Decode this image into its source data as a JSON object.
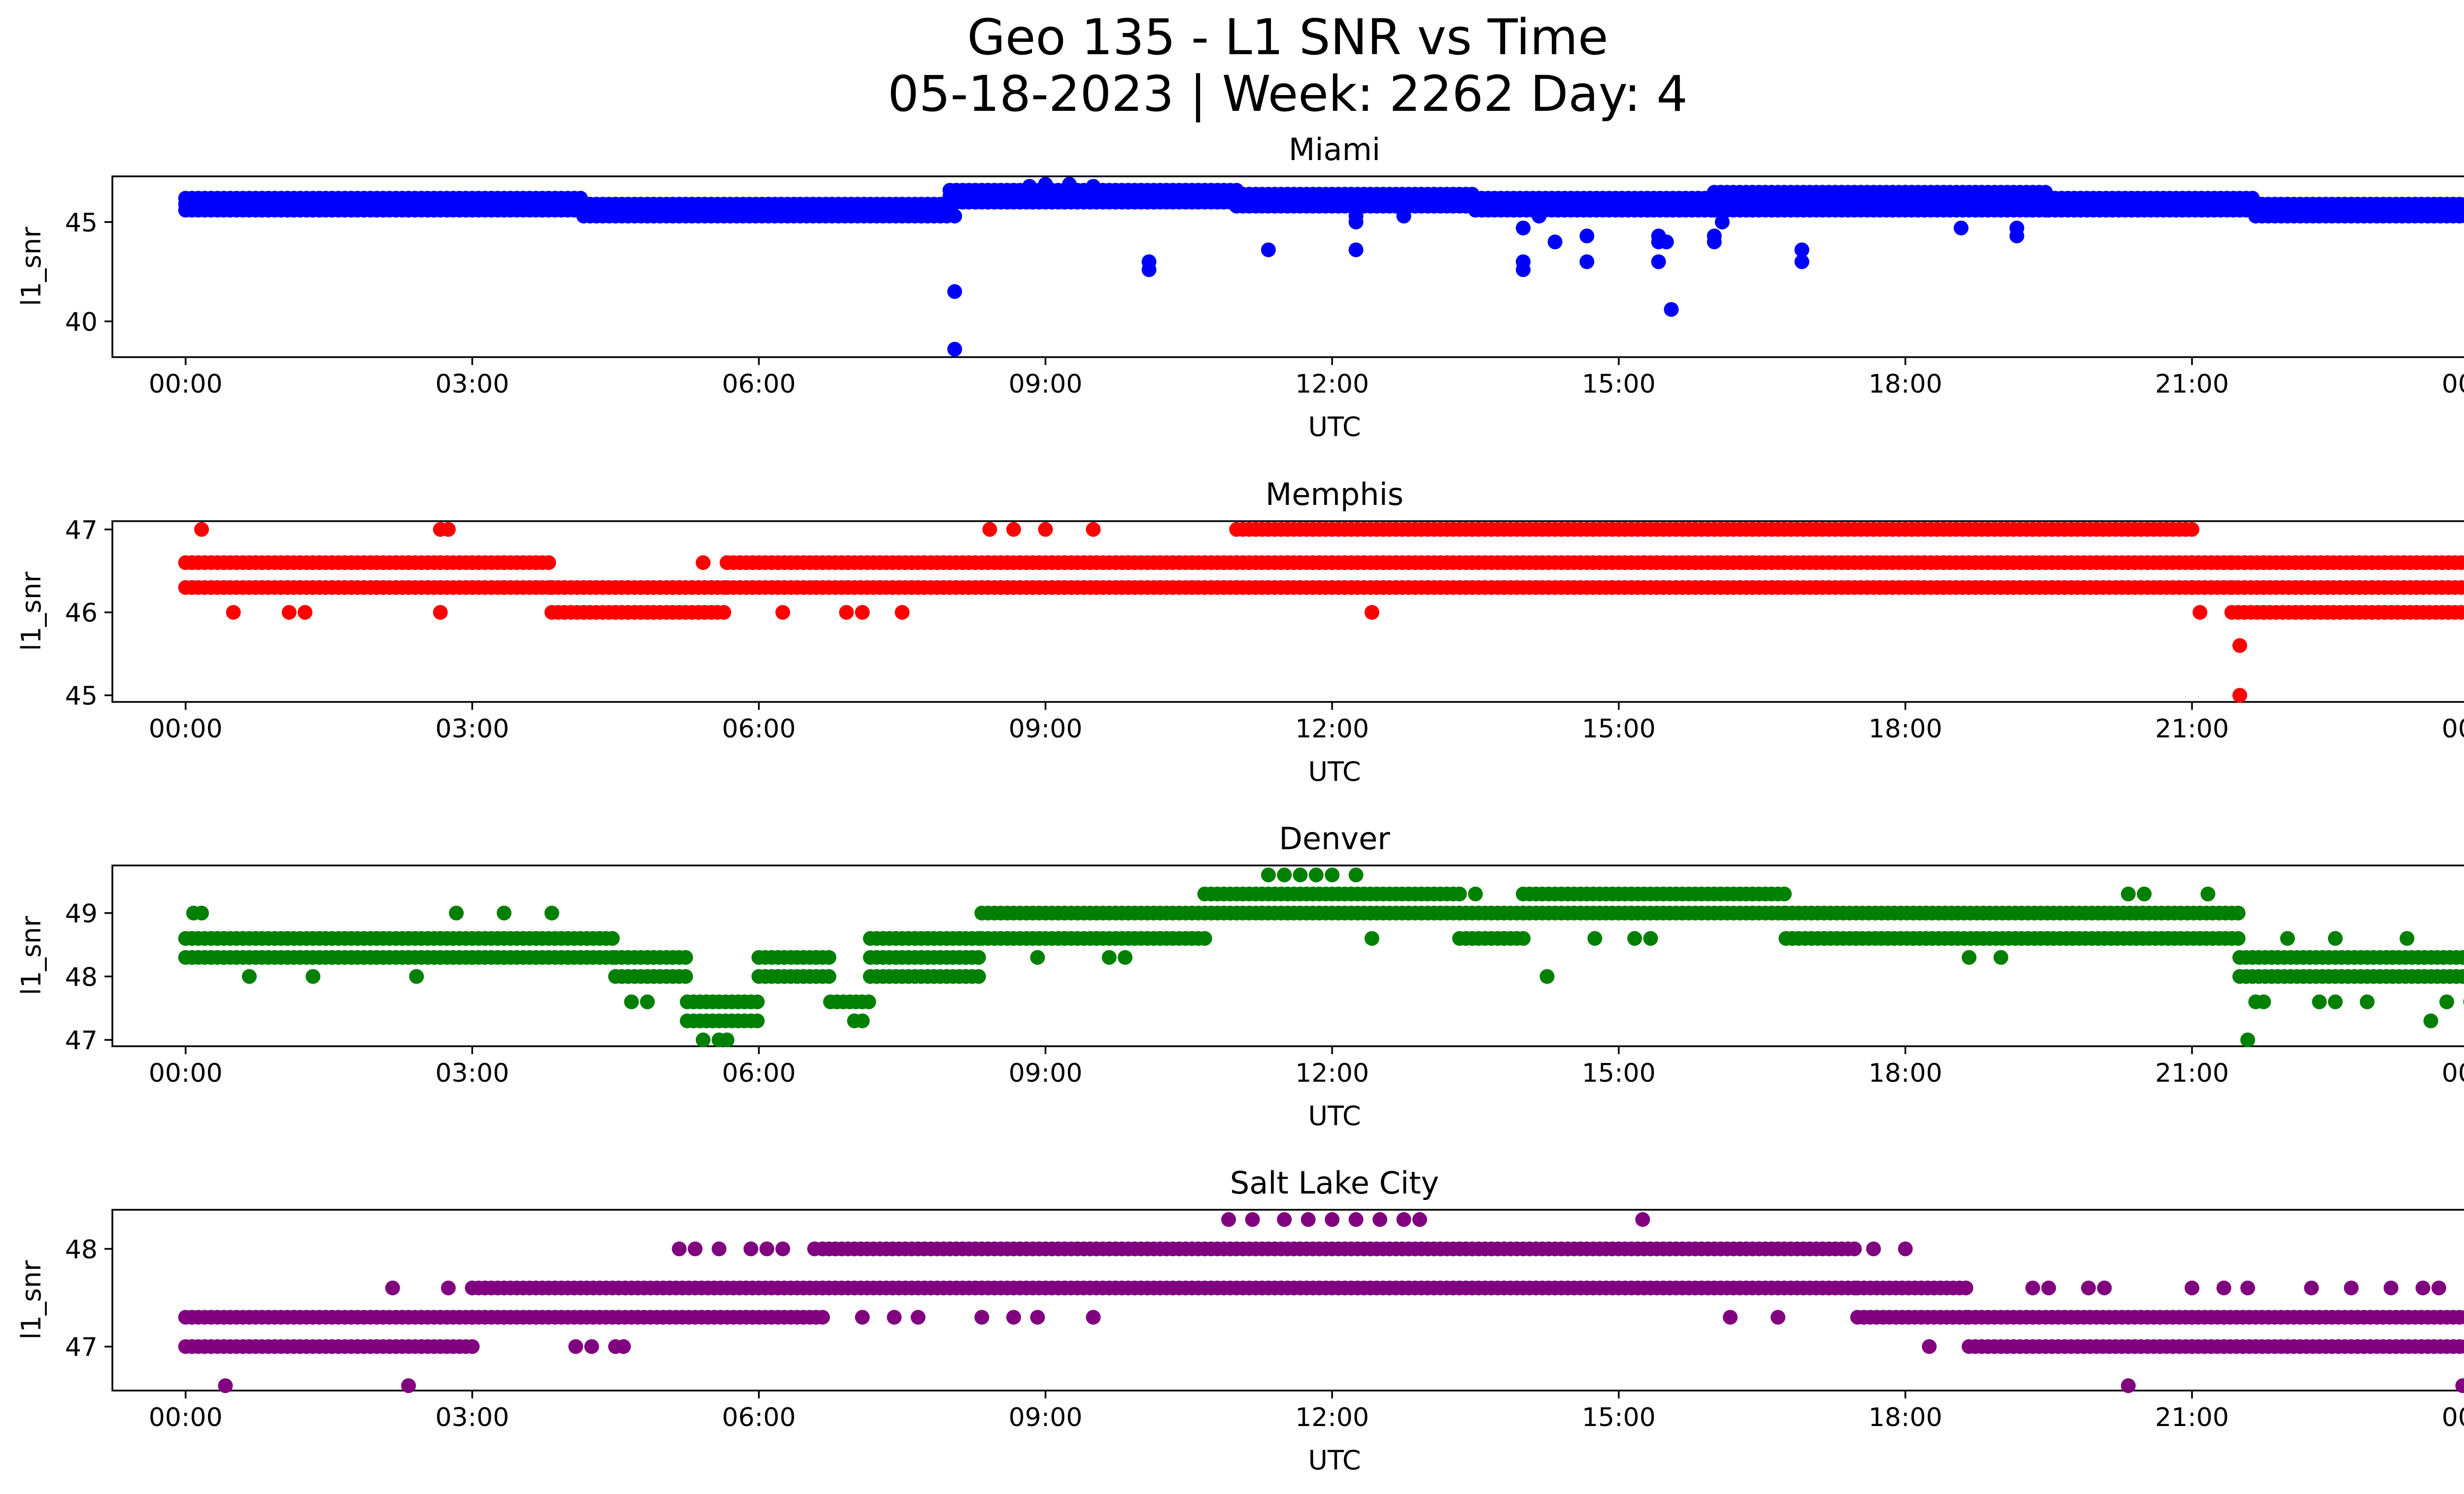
{
  "figure": {
    "title_line1": "Geo 135 - L1 SNR vs Time",
    "title_line2": "05-18-2023 | Week: 2262 Day: 4"
  },
  "chart_data": [
    {
      "type": "scatter",
      "title": "Miami",
      "color": "#0000ff",
      "xlabel": "UTC",
      "ylabel": "l1_snr",
      "xlim": [
        "2023-05-17 23:14",
        "2023-05-19 00:49"
      ],
      "ylim": [
        38.2,
        47.3
      ],
      "x_ticks": [
        "00:00",
        "03:00",
        "06:00",
        "09:00",
        "12:00",
        "15:00",
        "18:00",
        "21:00",
        "00:00"
      ],
      "y_ticks": [
        40,
        45
      ],
      "bands": [
        {
          "from": "00:00",
          "to": "04:10",
          "values": [
            45.6,
            45.9,
            46.2
          ]
        },
        {
          "from": "04:10",
          "to": "08:00",
          "values": [
            45.3,
            45.6,
            45.9
          ]
        },
        {
          "from": "08:00",
          "to": "11:00",
          "values": [
            46.0,
            46.3,
            46.6
          ]
        },
        {
          "from": "11:00",
          "to": "13:30",
          "values": [
            45.8,
            46.1,
            46.4
          ]
        },
        {
          "from": "13:30",
          "to": "16:00",
          "values": [
            45.6,
            45.9,
            46.2
          ]
        },
        {
          "from": "16:00",
          "to": "19:30",
          "values": [
            45.6,
            45.9,
            46.2,
            46.5
          ]
        },
        {
          "from": "19:30",
          "to": "21:40",
          "values": [
            45.6,
            45.9,
            46.2
          ]
        },
        {
          "from": "21:40",
          "to": "24:00",
          "values": [
            45.3,
            45.6,
            45.9
          ]
        }
      ],
      "points": [
        [
          "08:03",
          41.5
        ],
        [
          "08:03",
          38.6
        ],
        [
          "08:03",
          45.3
        ],
        [
          "09:00",
          46.9
        ],
        [
          "09:15",
          46.9
        ],
        [
          "10:05",
          43.0
        ],
        [
          "10:05",
          42.6
        ],
        [
          "11:20",
          43.6
        ],
        [
          "12:15",
          43.6
        ],
        [
          "12:15",
          45.0
        ],
        [
          "12:15",
          45.3
        ],
        [
          "12:45",
          45.3
        ],
        [
          "14:00",
          44.7
        ],
        [
          "14:00",
          43.0
        ],
        [
          "14:00",
          42.6
        ],
        [
          "14:10",
          45.3
        ],
        [
          "14:20",
          44.0
        ],
        [
          "14:40",
          44.3
        ],
        [
          "14:40",
          43.0
        ],
        [
          "15:25",
          44.3
        ],
        [
          "15:25",
          44.0
        ],
        [
          "15:25",
          43.0
        ],
        [
          "15:30",
          44.0
        ],
        [
          "15:33",
          40.6
        ],
        [
          "16:00",
          44.3
        ],
        [
          "16:00",
          44.0
        ],
        [
          "16:05",
          45.0
        ],
        [
          "16:55",
          43.6
        ],
        [
          "16:55",
          43.0
        ],
        [
          "18:35",
          44.7
        ],
        [
          "19:10",
          44.7
        ],
        [
          "19:10",
          44.3
        ],
        [
          "08:50",
          46.8
        ],
        [
          "09:30",
          46.8
        ],
        [
          "18:00",
          46.5
        ]
      ]
    },
    {
      "type": "scatter",
      "title": "Memphis",
      "color": "#ff0000",
      "xlabel": "UTC",
      "ylabel": "l1_snr",
      "xlim": [
        "2023-05-17 23:14",
        "2023-05-19 00:49"
      ],
      "ylim": [
        44.92,
        47.1
      ],
      "x_ticks": [
        "00:00",
        "03:00",
        "06:00",
        "09:00",
        "12:00",
        "15:00",
        "18:00",
        "21:00",
        "00:00"
      ],
      "y_ticks": [
        45,
        46,
        47
      ],
      "bands": [
        {
          "from": "00:00",
          "to": "03:50",
          "values": [
            46.3,
            46.6
          ]
        },
        {
          "from": "03:50",
          "to": "05:40",
          "values": [
            46.0,
            46.3
          ]
        },
        {
          "from": "05:40",
          "to": "11:00",
          "values": [
            46.3,
            46.6
          ]
        },
        {
          "from": "11:00",
          "to": "21:00",
          "values": [
            46.3,
            46.6,
            47.0
          ]
        },
        {
          "from": "21:00",
          "to": "21:25",
          "values": [
            46.3,
            46.6
          ]
        },
        {
          "from": "21:25",
          "to": "24:00",
          "values": [
            46.0,
            46.3,
            46.6
          ]
        }
      ],
      "points": [
        [
          "00:10",
          47.0
        ],
        [
          "02:40",
          47.0
        ],
        [
          "02:45",
          47.0
        ],
        [
          "00:30",
          46.0
        ],
        [
          "01:05",
          46.0
        ],
        [
          "01:15",
          46.0
        ],
        [
          "02:40",
          46.0
        ],
        [
          "05:25",
          46.6
        ],
        [
          "06:15",
          46.0
        ],
        [
          "06:55",
          46.0
        ],
        [
          "07:05",
          46.0
        ],
        [
          "07:30",
          46.0
        ],
        [
          "08:25",
          47.0
        ],
        [
          "08:40",
          47.0
        ],
        [
          "09:00",
          47.0
        ],
        [
          "09:30",
          47.0
        ],
        [
          "12:25",
          46.0
        ],
        [
          "21:05",
          46.0
        ],
        [
          "21:30",
          45.6
        ],
        [
          "21:30",
          45.0
        ]
      ]
    },
    {
      "type": "scatter",
      "title": "Denver",
      "color": "#008000",
      "xlabel": "UTC",
      "ylabel": "l1_snr",
      "xlim": [
        "2023-05-17 23:14",
        "2023-05-19 00:49"
      ],
      "ylim": [
        46.9,
        49.75
      ],
      "x_ticks": [
        "00:00",
        "03:00",
        "06:00",
        "09:00",
        "12:00",
        "15:00",
        "18:00",
        "21:00",
        "00:00"
      ],
      "y_ticks": [
        47,
        48,
        49
      ],
      "bands": [
        {
          "from": "00:00",
          "to": "04:30",
          "values": [
            48.3,
            48.6
          ]
        },
        {
          "from": "04:30",
          "to": "05:15",
          "values": [
            48.0,
            48.3
          ]
        },
        {
          "from": "05:15",
          "to": "06:00",
          "values": [
            47.3,
            47.6
          ]
        },
        {
          "from": "06:00",
          "to": "06:45",
          "values": [
            48.0,
            48.3
          ]
        },
        {
          "from": "06:45",
          "to": "07:10",
          "values": [
            47.6
          ]
        },
        {
          "from": "07:10",
          "to": "08:20",
          "values": [
            48.0,
            48.3,
            48.6
          ]
        },
        {
          "from": "08:20",
          "to": "10:40",
          "values": [
            48.6,
            49.0
          ]
        },
        {
          "from": "10:40",
          "to": "13:20",
          "values": [
            49.0,
            49.3
          ]
        },
        {
          "from": "13:20",
          "to": "14:00",
          "values": [
            48.6,
            49.0
          ]
        },
        {
          "from": "14:00",
          "to": "16:45",
          "values": [
            49.0,
            49.3
          ]
        },
        {
          "from": "16:45",
          "to": "21:30",
          "values": [
            48.6,
            49.0
          ]
        },
        {
          "from": "21:30",
          "to": "24:00",
          "values": [
            48.0,
            48.3
          ]
        }
      ],
      "points": [
        [
          "00:05",
          49.0
        ],
        [
          "00:10",
          49.0
        ],
        [
          "00:40",
          48.0
        ],
        [
          "01:20",
          48.0
        ],
        [
          "02:25",
          48.0
        ],
        [
          "02:50",
          49.0
        ],
        [
          "03:20",
          49.0
        ],
        [
          "03:50",
          49.0
        ],
        [
          "04:40",
          47.6
        ],
        [
          "04:50",
          47.6
        ],
        [
          "05:25",
          47.0
        ],
        [
          "05:35",
          47.0
        ],
        [
          "05:40",
          47.0
        ],
        [
          "07:00",
          47.3
        ],
        [
          "07:05",
          47.3
        ],
        [
          "08:10",
          48.3
        ],
        [
          "08:55",
          48.3
        ],
        [
          "09:40",
          48.3
        ],
        [
          "09:50",
          48.3
        ],
        [
          "11:20",
          49.6
        ],
        [
          "11:30",
          49.6
        ],
        [
          "11:40",
          49.6
        ],
        [
          "11:50",
          49.6
        ],
        [
          "12:00",
          49.6
        ],
        [
          "12:15",
          49.6
        ],
        [
          "12:25",
          48.6
        ],
        [
          "13:30",
          49.3
        ],
        [
          "14:15",
          48.0
        ],
        [
          "14:45",
          48.6
        ],
        [
          "15:10",
          48.6
        ],
        [
          "15:20",
          48.6
        ],
        [
          "18:40",
          48.3
        ],
        [
          "19:00",
          48.3
        ],
        [
          "20:20",
          49.3
        ],
        [
          "20:30",
          49.3
        ],
        [
          "21:10",
          49.3
        ],
        [
          "21:35",
          47.0
        ],
        [
          "21:40",
          47.6
        ],
        [
          "21:45",
          47.6
        ],
        [
          "22:20",
          47.6
        ],
        [
          "22:30",
          47.6
        ],
        [
          "22:50",
          47.6
        ],
        [
          "23:30",
          47.3
        ],
        [
          "23:40",
          47.6
        ],
        [
          "23:55",
          47.6
        ],
        [
          "22:00",
          48.6
        ],
        [
          "22:30",
          48.6
        ],
        [
          "23:15",
          48.6
        ]
      ]
    },
    {
      "type": "scatter",
      "title": "Salt Lake City",
      "color": "#800080",
      "xlabel": "UTC",
      "ylabel": "l1_snr",
      "xlim": [
        "2023-05-17 23:14",
        "2023-05-19 00:49"
      ],
      "ylim": [
        46.55,
        48.4
      ],
      "x_ticks": [
        "00:00",
        "03:00",
        "06:00",
        "09:00",
        "12:00",
        "15:00",
        "18:00",
        "21:00",
        "00:00"
      ],
      "y_ticks": [
        47,
        48
      ],
      "bands": [
        {
          "from": "00:00",
          "to": "03:00",
          "values": [
            47.0,
            47.3
          ]
        },
        {
          "from": "03:00",
          "to": "06:40",
          "values": [
            47.3,
            47.6
          ]
        },
        {
          "from": "06:40",
          "to": "17:30",
          "values": [
            47.6,
            48.0
          ]
        },
        {
          "from": "17:30",
          "to": "18:40",
          "values": [
            47.3,
            47.6
          ]
        },
        {
          "from": "18:40",
          "to": "24:00",
          "values": [
            47.0,
            47.3
          ]
        }
      ],
      "points": [
        [
          "00:25",
          46.6
        ],
        [
          "02:10",
          47.6
        ],
        [
          "02:20",
          46.6
        ],
        [
          "02:45",
          47.6
        ],
        [
          "03:00",
          47.3
        ],
        [
          "04:05",
          47.0
        ],
        [
          "04:15",
          47.0
        ],
        [
          "04:30",
          47.0
        ],
        [
          "04:35",
          47.0
        ],
        [
          "05:10",
          48.0
        ],
        [
          "05:20",
          48.0
        ],
        [
          "05:35",
          48.0
        ],
        [
          "05:55",
          48.0
        ],
        [
          "06:05",
          48.0
        ],
        [
          "06:15",
          48.0
        ],
        [
          "06:35",
          48.0
        ],
        [
          "07:05",
          47.3
        ],
        [
          "07:25",
          47.3
        ],
        [
          "07:40",
          47.3
        ],
        [
          "08:20",
          47.3
        ],
        [
          "08:40",
          47.3
        ],
        [
          "08:55",
          47.3
        ],
        [
          "09:30",
          47.3
        ],
        [
          "10:55",
          48.3
        ],
        [
          "11:10",
          48.3
        ],
        [
          "11:30",
          48.3
        ],
        [
          "11:45",
          48.3
        ],
        [
          "12:00",
          48.3
        ],
        [
          "12:15",
          48.3
        ],
        [
          "12:30",
          48.3
        ],
        [
          "12:45",
          48.3
        ],
        [
          "12:55",
          48.3
        ],
        [
          "15:15",
          48.3
        ],
        [
          "16:10",
          47.3
        ],
        [
          "16:40",
          47.3
        ],
        [
          "17:40",
          48.0
        ],
        [
          "18:00",
          48.0
        ],
        [
          "18:15",
          47.0
        ],
        [
          "19:20",
          47.6
        ],
        [
          "19:30",
          47.6
        ],
        [
          "19:55",
          47.6
        ],
        [
          "20:05",
          47.6
        ],
        [
          "20:20",
          46.6
        ],
        [
          "21:00",
          47.6
        ],
        [
          "21:20",
          47.6
        ],
        [
          "21:35",
          47.6
        ],
        [
          "22:15",
          47.6
        ],
        [
          "22:40",
          47.6
        ],
        [
          "23:05",
          47.6
        ],
        [
          "23:25",
          47.6
        ],
        [
          "23:35",
          47.6
        ],
        [
          "23:50",
          46.6
        ]
      ]
    }
  ]
}
